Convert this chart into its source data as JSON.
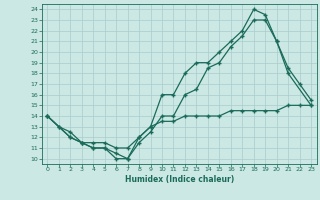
{
  "xlabel": "Humidex (Indice chaleur)",
  "bg_color": "#cce8e4",
  "line_color": "#1a6b5a",
  "grid_color": "#aacccc",
  "xlim": [
    -0.5,
    23.5
  ],
  "ylim": [
    9.5,
    24.5
  ],
  "xticks": [
    0,
    1,
    2,
    3,
    4,
    5,
    6,
    7,
    8,
    9,
    10,
    11,
    12,
    13,
    14,
    15,
    16,
    17,
    18,
    19,
    20,
    21,
    22,
    23
  ],
  "yticks": [
    10,
    11,
    12,
    13,
    14,
    15,
    16,
    17,
    18,
    19,
    20,
    21,
    22,
    23,
    24
  ],
  "line1_x": [
    0,
    1,
    2,
    3,
    4,
    5,
    6,
    7,
    8,
    9,
    10,
    11,
    12,
    13,
    14,
    15,
    16,
    17,
    18,
    19,
    20,
    21,
    22,
    23
  ],
  "line1_y": [
    14,
    13,
    12.5,
    11.5,
    11.5,
    11.5,
    11,
    11,
    12,
    13,
    13.5,
    13.5,
    14,
    14,
    14,
    14,
    14.5,
    14.5,
    14.5,
    14.5,
    14.5,
    15,
    15,
    15
  ],
  "line2_x": [
    0,
    1,
    2,
    3,
    4,
    5,
    6,
    7,
    8,
    9,
    10,
    11,
    12,
    13,
    14,
    15,
    16,
    17,
    18,
    19,
    20,
    21,
    22,
    23
  ],
  "line2_y": [
    14,
    13,
    12,
    11.5,
    11,
    11,
    10.5,
    10,
    11.5,
    12.5,
    14,
    14,
    16,
    16.5,
    18.5,
    19,
    20.5,
    21.5,
    23,
    23,
    21,
    18.5,
    17,
    15.5
  ],
  "line3_x": [
    0,
    2,
    3,
    4,
    5,
    6,
    7,
    8,
    9,
    10,
    11,
    12,
    13,
    14,
    15,
    16,
    17,
    18,
    19,
    20,
    21,
    23
  ],
  "line3_y": [
    14,
    12,
    11.5,
    11,
    11,
    10,
    10,
    12,
    13,
    16,
    16,
    18,
    19,
    19,
    20,
    21,
    22,
    24,
    23.5,
    21,
    18,
    15
  ]
}
